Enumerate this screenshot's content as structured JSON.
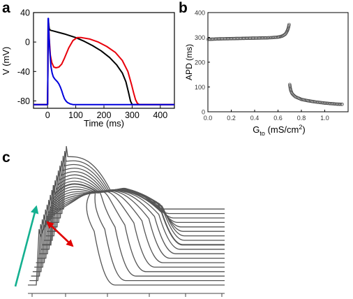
{
  "panel_labels": {
    "a": "a",
    "b": "b",
    "c": "c"
  },
  "colors": {
    "trace_black": "#000000",
    "trace_red": "#e8000b",
    "trace_blue": "#0000dd",
    "marker": "#444444",
    "waterfall": "#555555",
    "arrow_red": "#e10000",
    "arrow_teal": "#14b090"
  },
  "chart_data": [
    {
      "panel": "a",
      "type": "line",
      "xlabel": "Time (ms)",
      "ylabel": "V (mV)",
      "xlim": [
        -50,
        450
      ],
      "ylim": [
        -90,
        40
      ],
      "xticks": [
        0,
        100,
        200,
        300,
        400
      ],
      "yticks": [
        40,
        0,
        -40,
        -80
      ],
      "ytick_labels": [
        "40",
        "0",
        "-40",
        "-80"
      ],
      "series": [
        {
          "color": "black",
          "x": [
            -50,
            0,
            1,
            2,
            3,
            6,
            10,
            20,
            40,
            60,
            80,
            100,
            130,
            160,
            190,
            220,
            245,
            265,
            278,
            287,
            294,
            300,
            310,
            330,
            450
          ],
          "y": [
            -85,
            -85,
            -40,
            28,
            28,
            18,
            16,
            15,
            13,
            11,
            8.5,
            6,
            1,
            -5,
            -12,
            -21,
            -31,
            -42,
            -54,
            -68,
            -80,
            -85,
            -85,
            -85,
            -85
          ]
        },
        {
          "color": "red",
          "x": [
            -50,
            0,
            1,
            2,
            3,
            6,
            10,
            15,
            22,
            30,
            40,
            50,
            60,
            75,
            90,
            105,
            120,
            150,
            180,
            210,
            240,
            265,
            285,
            298,
            306,
            312,
            318,
            325,
            450
          ],
          "y": [
            -85,
            -85,
            -40,
            28,
            28,
            5,
            -18,
            -28,
            -34,
            -35,
            -34,
            -30,
            -22,
            -8,
            2,
            6,
            6,
            4,
            0,
            -6,
            -14,
            -25,
            -40,
            -58,
            -70,
            -78,
            -83,
            -85,
            -85
          ]
        },
        {
          "color": "blue",
          "x": [
            -50,
            0,
            1,
            2,
            3,
            5,
            8,
            12,
            16,
            20,
            25,
            30,
            35,
            40,
            45,
            50,
            55,
            60,
            65,
            70,
            75,
            80,
            90,
            100,
            450
          ],
          "y": [
            -85,
            -85,
            -40,
            32,
            32,
            10,
            -12,
            -33,
            -42,
            -47,
            -50,
            -52,
            -54,
            -57,
            -61,
            -66,
            -72,
            -77,
            -80,
            -82,
            -83,
            -84,
            -85,
            -85,
            -85
          ]
        }
      ]
    },
    {
      "panel": "b",
      "type": "scatter",
      "xlabel_main": "G",
      "xlabel_sub": "to",
      "xlabel_unit": "(mS/cm",
      "xlabel_sup": "2",
      "xlabel_close": ")",
      "ylabel": "APD (ms)",
      "xlim": [
        0,
        1.2
      ],
      "ylim": [
        0,
        400
      ],
      "xticks": [
        0.0,
        0.2,
        0.4,
        0.6,
        0.8,
        1.0
      ],
      "xtick_labels": [
        "0.0",
        "0.2",
        "0.4",
        "0.6",
        "0.8",
        "1.0"
      ],
      "yticks": [
        0,
        100,
        200,
        300,
        400
      ],
      "series": [
        {
          "segment": "upper",
          "x": [
            0.0,
            0.1,
            0.2,
            0.3,
            0.4,
            0.5,
            0.55,
            0.6,
            0.62,
            0.64,
            0.66,
            0.67,
            0.68,
            0.685,
            0.69,
            0.695
          ],
          "y": [
            292,
            294,
            295,
            296,
            297,
            298,
            299,
            301,
            303,
            306,
            312,
            318,
            327,
            333,
            341,
            352
          ]
        },
        {
          "segment": "lower",
          "x": [
            0.7,
            0.705,
            0.71,
            0.72,
            0.73,
            0.75,
            0.78,
            0.8,
            0.85,
            0.9,
            0.95,
            1.0,
            1.05,
            1.1,
            1.15
          ],
          "y": [
            110,
            95,
            85,
            74,
            68,
            60,
            54,
            50,
            45,
            41,
            38,
            35,
            33,
            31,
            30
          ]
        }
      ]
    },
    {
      "panel": "c",
      "type": "line",
      "description_free": true,
      "n_traces": 18,
      "arrows": [
        "red",
        "teal"
      ]
    }
  ]
}
